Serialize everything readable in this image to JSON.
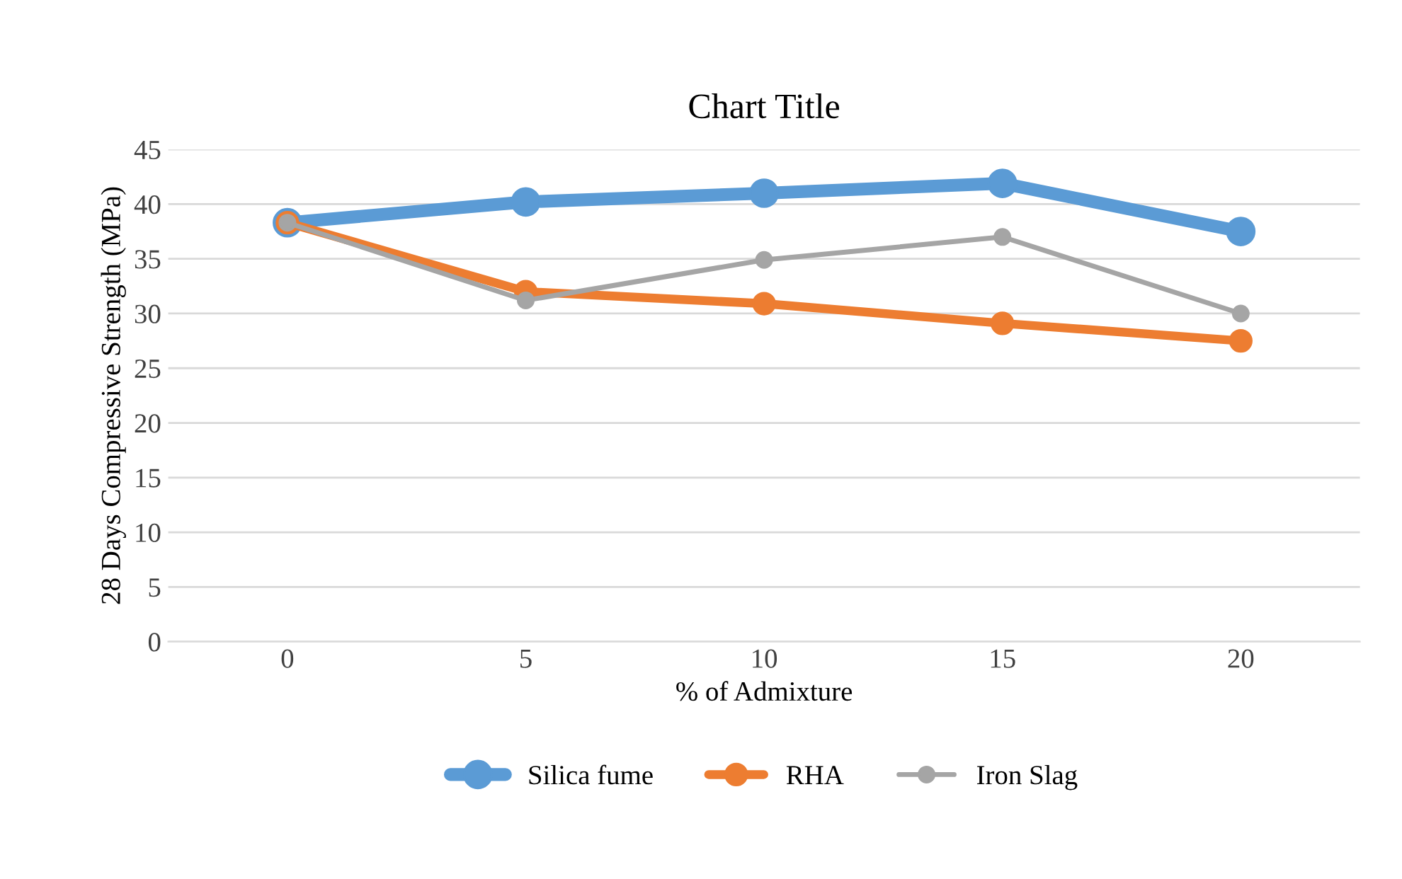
{
  "chart_data": {
    "type": "line",
    "title": "Chart Title",
    "xlabel": "% of Admixture",
    "ylabel": "28 Days Compressive Strength (MPa)",
    "categories": [
      "0",
      "5",
      "10",
      "15",
      "20"
    ],
    "series": [
      {
        "name": "Silica fume",
        "color": "#5b9bd5",
        "values": [
          38.3,
          40.2,
          41.0,
          41.9,
          37.5
        ]
      },
      {
        "name": "RHA",
        "color": "#ed7d31",
        "values": [
          38.3,
          32.0,
          30.9,
          29.1,
          27.5
        ]
      },
      {
        "name": "Iron Slag",
        "color": "#a5a5a5",
        "values": [
          38.3,
          31.2,
          34.9,
          37.0,
          30.0
        ]
      }
    ],
    "ylim": [
      0,
      45
    ],
    "yticks": [
      0,
      5,
      10,
      15,
      20,
      25,
      30,
      35,
      40,
      45
    ],
    "grid": "y",
    "legend": "bottom",
    "marker": "circle",
    "line_style": "solid"
  }
}
